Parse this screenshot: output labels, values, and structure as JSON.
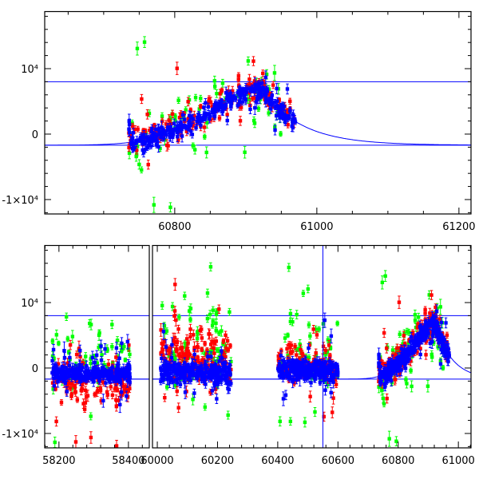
{
  "chart_data": {
    "type": "scatter",
    "title": "",
    "xlabel": "",
    "ylabel": "",
    "colors": {
      "red": "#ff0000",
      "green": "#00ff00",
      "blue": "#0000ff",
      "axis": "#000000"
    },
    "ylim": [
      -12200,
      18720
    ],
    "y_ticks": [
      {
        "value": 10000,
        "label": "10⁴"
      },
      {
        "value": 0,
        "label": "0"
      },
      {
        "value": -10000,
        "label": "-1×10⁴"
      }
    ],
    "y_minor_step": 2000,
    "reference_lines": [
      8000,
      -1700
    ],
    "model": {
      "baseline": -1700,
      "amplitude": 8200,
      "peak_x": 60925,
      "rise_width": 110,
      "decay_tau": 55
    },
    "panels": [
      {
        "name": "top",
        "axes": [
          {
            "xlim": [
              60617,
              61217
            ],
            "x_ticks": [
              {
                "value": 60800,
                "label": "60800"
              },
              {
                "value": 61000,
                "label": "61000"
              },
              {
                "value": 61200,
                "label": "61200"
              }
            ],
            "x_minor_step": 50,
            "seasons": [
              "s4"
            ]
          }
        ]
      },
      {
        "name": "bottom",
        "axes": [
          {
            "xlim": [
              58159,
              58460
            ],
            "x_ticks": [
              {
                "value": 58200,
                "label": "58200"
              },
              {
                "value": 58400,
                "label": "58400"
              }
            ],
            "x_minor_step": 40,
            "seasons": [
              "s1"
            ]
          },
          {
            "xlim": [
              59984,
              61042
            ],
            "x_ticks": [
              {
                "value": 60000,
                "label": "60000"
              },
              {
                "value": 60200,
                "label": "60200"
              },
              {
                "value": 60400,
                "label": "60400"
              },
              {
                "value": 60600,
                "label": "60600"
              },
              {
                "value": 60800,
                "label": "60800"
              },
              {
                "value": 61000,
                "label": "61000"
              }
            ],
            "x_minor_step": 40,
            "seasons": [
              "s2",
              "s3",
              "s4"
            ]
          }
        ]
      }
    ],
    "seasons": {
      "s1": {
        "x_range": [
          58180,
          58405
        ],
        "follows_model": false,
        "series": [
          {
            "color": "green",
            "center": 1500,
            "spread": 3000,
            "n": 60
          },
          {
            "color": "red",
            "center": -2000,
            "spread": 1800,
            "n": 130
          },
          {
            "color": "blue",
            "center": -900,
            "spread": 650,
            "n": 260
          }
        ]
      },
      "s2": {
        "x_range": [
          60010,
          60245
        ],
        "follows_model": false,
        "series": [
          {
            "color": "green",
            "center": 3000,
            "spread": 4000,
            "n": 80
          },
          {
            "color": "red",
            "center": 1500,
            "spread": 2000,
            "n": 160
          },
          {
            "color": "blue",
            "center": -600,
            "spread": 800,
            "n": 260
          }
        ]
      },
      "s3": {
        "x_range": [
          60400,
          60600
        ],
        "follows_model": false,
        "series": [
          {
            "color": "green",
            "center": 2000,
            "spread": 4000,
            "n": 60
          },
          {
            "color": "red",
            "center": 500,
            "spread": 1500,
            "n": 110
          },
          {
            "color": "blue",
            "center": -300,
            "spread": 800,
            "n": 250
          }
        ]
      },
      "s4": {
        "x_range": [
          60735,
          60970
        ],
        "follows_model": true,
        "series": [
          {
            "color": "green",
            "center": 0,
            "spread": 2500,
            "n": 80
          },
          {
            "color": "red",
            "center": 500,
            "spread": 1200,
            "n": 150
          },
          {
            "color": "blue",
            "center": 0,
            "spread": 700,
            "n": 300
          }
        ]
      }
    },
    "special_points": [
      {
        "x": 60550,
        "y": 0,
        "err": 40000,
        "color": "blue",
        "panel": "bottom"
      }
    ]
  }
}
